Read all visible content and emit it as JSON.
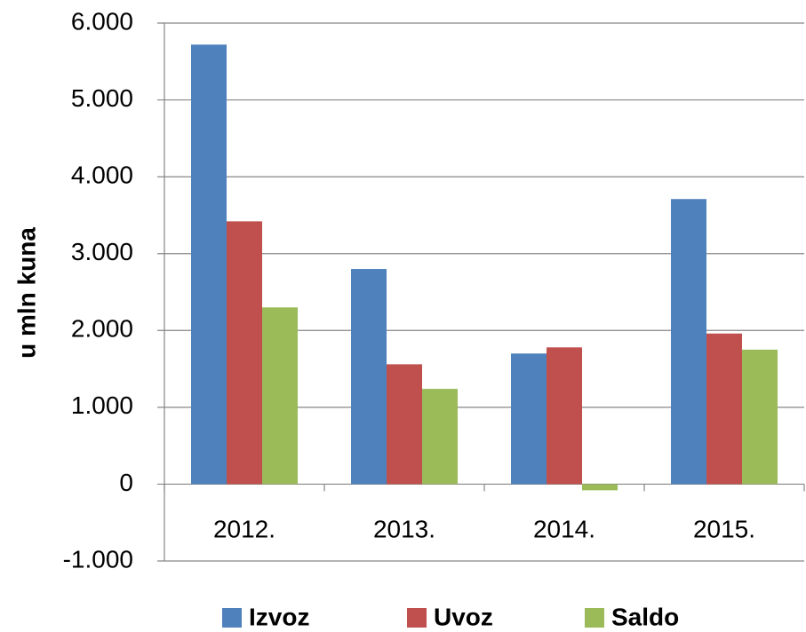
{
  "chart_data": {
    "type": "bar",
    "y_axis_label": "u mln kuna",
    "categories": [
      "2012.",
      "2013.",
      "2014.",
      "2015."
    ],
    "series": [
      {
        "name": "Izvoz",
        "color": "#4f81bd",
        "values": [
          5720,
          2800,
          1700,
          3710
        ]
      },
      {
        "name": "Uvoz",
        "color": "#c0504d",
        "values": [
          3420,
          1560,
          1780,
          1960
        ]
      },
      {
        "name": "Saldo",
        "color": "#9bbb59",
        "values": [
          2300,
          1240,
          -80,
          1750
        ]
      }
    ],
    "ylim": [
      -1000,
      6000
    ],
    "yticks": [
      {
        "value": -1000,
        "label": "-1.000"
      },
      0,
      {
        "value": 1000,
        "label": "1.000"
      },
      {
        "value": 2000,
        "label": "2.000"
      },
      {
        "value": 3000,
        "label": "3.000"
      },
      {
        "value": 4000,
        "label": "4.000"
      },
      {
        "value": 5000,
        "label": "5.000"
      },
      {
        "value": 6000,
        "label": "6.000"
      }
    ],
    "grid": true,
    "legend": "bottom"
  }
}
